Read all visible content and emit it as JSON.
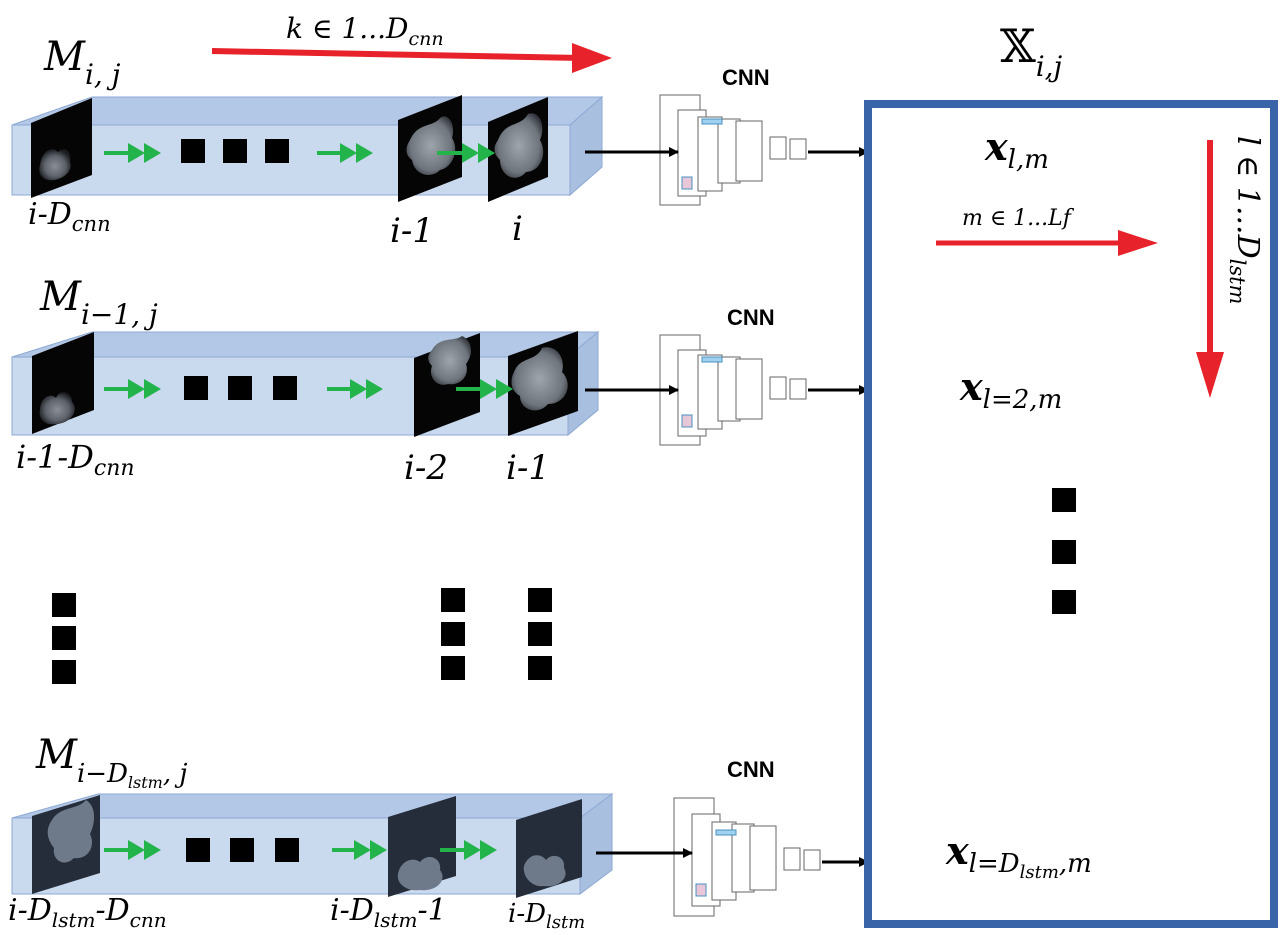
{
  "rows": [
    {
      "matrix": {
        "sym": "M",
        "sub": "i, j"
      },
      "labels": {
        "first": {
          "base": "i-D",
          "sub": "cnn"
        },
        "prev": {
          "base": "i-1"
        },
        "last": {
          "base": "i"
        }
      }
    },
    {
      "matrix": {
        "sym": "M",
        "sub": "i−1, j"
      },
      "labels": {
        "first": {
          "base": "i-1-D",
          "sub": "cnn"
        },
        "prev": {
          "base": "i-2"
        },
        "last": {
          "base": "i-1"
        }
      }
    },
    {
      "matrix": {
        "sym": "M",
        "sub_a": "i−D",
        "sub_b": "lstm",
        "sub_c": ", j"
      },
      "labels": {
        "first": {
          "a": "i-D",
          "b": "lstm",
          "c": "-D",
          "d": "cnn"
        },
        "prev": {
          "a": "i-D",
          "b": "lstm",
          "c": "-1"
        },
        "last": {
          "a": "i-D",
          "b": "lstm"
        }
      }
    }
  ],
  "cnn_label": "CNN",
  "top_arrow": {
    "k": "k ∈ 1...D",
    "sub": "cnn"
  },
  "output": {
    "title": {
      "sym": "𝕏",
      "sub": "i,j"
    },
    "x_first": {
      "sym": "x",
      "sub": "l,m"
    },
    "x_second": {
      "sym": "x",
      "sub": "l=2,m"
    },
    "x_last": {
      "sym": "x",
      "sub_a": "l=D",
      "sub_b": "lstm",
      "sub_c": ",m"
    },
    "m_arrow": "m ∈ 1...Lf",
    "l_arrow": {
      "base": "l ∈ 1...D",
      "sub": "lstm"
    }
  },
  "colors": {
    "tube_fill": "#c9d9ee",
    "tube_top": "#b3c8e6",
    "tube_edge": "#8ea9d4",
    "box_border": "#3a64a8",
    "red_arrow": "#e8222a",
    "green_arrow": "#23b34b"
  }
}
